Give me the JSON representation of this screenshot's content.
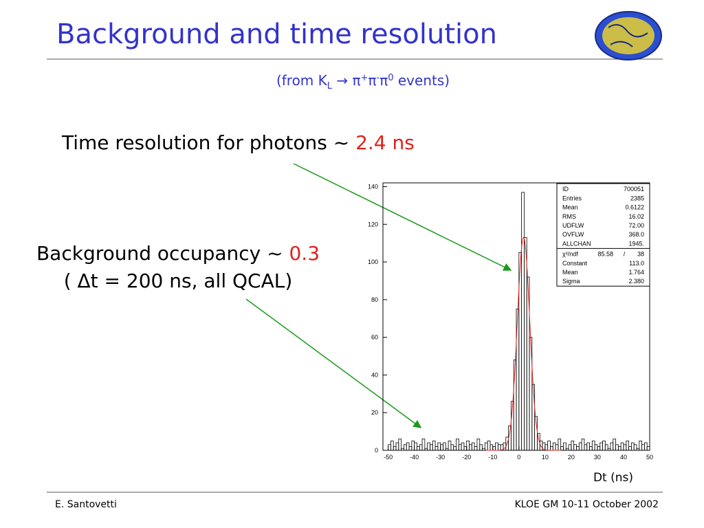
{
  "slide": {
    "title": "Background and time resolution",
    "subtitle": [
      "(from K",
      "L",
      " → π",
      "+",
      "π",
      "-",
      "π",
      "0",
      " events)"
    ],
    "statement1": {
      "text": "Time resolution for photons ~ ",
      "highlight": "2.4 ns"
    },
    "statement2": {
      "text": "Background occupancy ~ ",
      "highlight": "0.3",
      "line2": "( Δt = 200 ns, all QCAL)"
    },
    "footer": {
      "left": "E. Santovetti",
      "right": "KLOE GM 10-11 October 2002"
    }
  },
  "chart_data": {
    "type": "histogram",
    "xlabel": "Dt (ns)",
    "color": "#000000",
    "fit_color": "#e0231e",
    "xlim": [
      -52,
      50
    ],
    "xticks": [
      -50,
      -40,
      -30,
      -20,
      -10,
      0,
      10,
      20,
      30,
      40,
      50
    ],
    "ylim": [
      0,
      142
    ],
    "yticks": [
      0,
      20,
      40,
      60,
      80,
      100,
      120,
      140
    ],
    "bins": [
      -50,
      -49,
      -48,
      -47,
      -46,
      -45,
      -44,
      -43,
      -42,
      -41,
      -40,
      -39,
      -38,
      -37,
      -36,
      -35,
      -34,
      -33,
      -32,
      -31,
      -30,
      -29,
      -28,
      -27,
      -26,
      -25,
      -24,
      -23,
      -22,
      -21,
      -20,
      -19,
      -18,
      -17,
      -16,
      -15,
      -14,
      -13,
      -12,
      -11,
      -10,
      -9,
      -8,
      -7,
      -6,
      -5,
      -4,
      -3,
      -2,
      -1,
      0,
      1,
      2,
      3,
      4,
      5,
      6,
      7,
      8,
      9,
      10,
      11,
      12,
      13,
      14,
      15,
      16,
      17,
      18,
      19,
      20,
      21,
      22,
      23,
      24,
      25,
      26,
      27,
      28,
      29,
      30,
      31,
      32,
      33,
      34,
      35,
      36,
      37,
      38,
      39,
      40,
      41,
      42,
      43,
      44,
      45,
      46,
      47,
      48,
      49,
      50
    ],
    "values": [
      3,
      5,
      2,
      4,
      6,
      1,
      3,
      4,
      2,
      5,
      4,
      2,
      3,
      6,
      1,
      4,
      3,
      5,
      2,
      4,
      3,
      4,
      1,
      5,
      3,
      2,
      6,
      3,
      4,
      2,
      5,
      3,
      4,
      2,
      6,
      3,
      1,
      4,
      5,
      3,
      2,
      4,
      3,
      3,
      4,
      7,
      13,
      26,
      48,
      75,
      105,
      137,
      113,
      92,
      60,
      35,
      18,
      9,
      5,
      4,
      3,
      5,
      2,
      4,
      3,
      6,
      2,
      4,
      1,
      3,
      5,
      3,
      2,
      4,
      6,
      3,
      4,
      2,
      5,
      3,
      2,
      4,
      5,
      3,
      1,
      4,
      6,
      3,
      2,
      4,
      3,
      5,
      2,
      4,
      3,
      1,
      5,
      3,
      4,
      2
    ],
    "stats": [
      {
        "name": "ID",
        "value": 700051
      },
      {
        "name": "Entries",
        "value": 2385
      },
      {
        "name": "Mean",
        "value": 0.6122
      },
      {
        "name": "RMS",
        "value": 16.02
      },
      {
        "name": "UDFLW",
        "value": {
          "value": 72,
          "label": "72.00"
        }
      },
      {
        "name": "OVFLW",
        "value": {
          "value": 368,
          "label": "368.0"
        }
      },
      {
        "name": "ALLCHAN",
        "value": {
          "value": 1945,
          "label": "1945."
        }
      }
    ],
    "fit": {
      "chi2_name": "χ²/ndf",
      "chi2": 85.58,
      "slash": "/",
      "ndf": 38,
      "params": [
        {
          "name": "Constant",
          "value": {
            "value": 113.0,
            "label": "113.0"
          }
        },
        {
          "name": "Mean",
          "value": 1.764
        },
        {
          "name": "Sigma",
          "value": {
            "value": 2.38,
            "label": "2.380"
          }
        }
      ]
    }
  }
}
